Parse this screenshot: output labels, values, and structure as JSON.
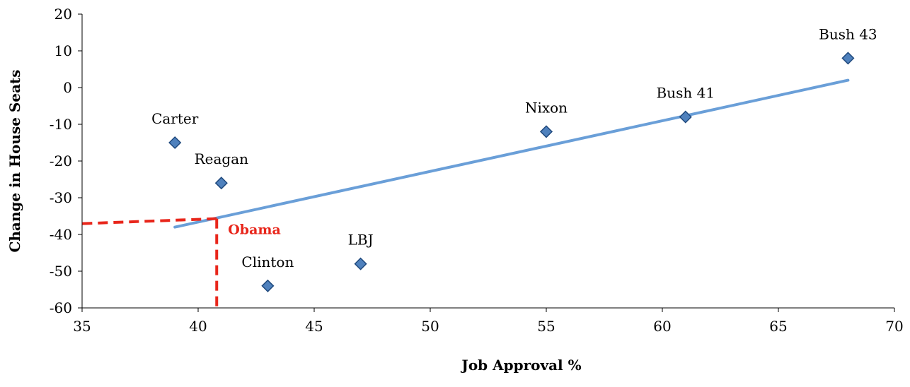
{
  "chart_data": {
    "type": "scatter",
    "title": "",
    "xlabel": "Job Approval %",
    "ylabel": "Change in House Seats",
    "xlim": [
      35,
      70
    ],
    "ylim": [
      -60,
      20
    ],
    "xticks": [
      35,
      40,
      45,
      50,
      55,
      60,
      65,
      70
    ],
    "yticks": [
      -60,
      -50,
      -40,
      -30,
      -20,
      -10,
      0,
      10,
      20
    ],
    "grid": false,
    "legend": "none",
    "marker_color": "#4F81BD",
    "marker_edge_color": "#1F497D",
    "trendline_color": "#6A9FD8",
    "annotation_color": "#E8261B",
    "points": [
      {
        "label": "Carter",
        "x": 39,
        "y": -15
      },
      {
        "label": "Reagan",
        "x": 41,
        "y": -26
      },
      {
        "label": "Clinton",
        "x": 43,
        "y": -54
      },
      {
        "label": "LBJ",
        "x": 47,
        "y": -48
      },
      {
        "label": "Nixon",
        "x": 55,
        "y": -12
      },
      {
        "label": "Bush 41",
        "x": 61,
        "y": -8
      },
      {
        "label": "Bush 43",
        "x": 68,
        "y": 8
      }
    ],
    "trendline": {
      "type": "linear",
      "x": [
        39,
        68
      ],
      "y": [
        -38,
        2
      ]
    },
    "annotation": {
      "label": "Obama",
      "x": 40.8,
      "y": -35.7
    }
  }
}
